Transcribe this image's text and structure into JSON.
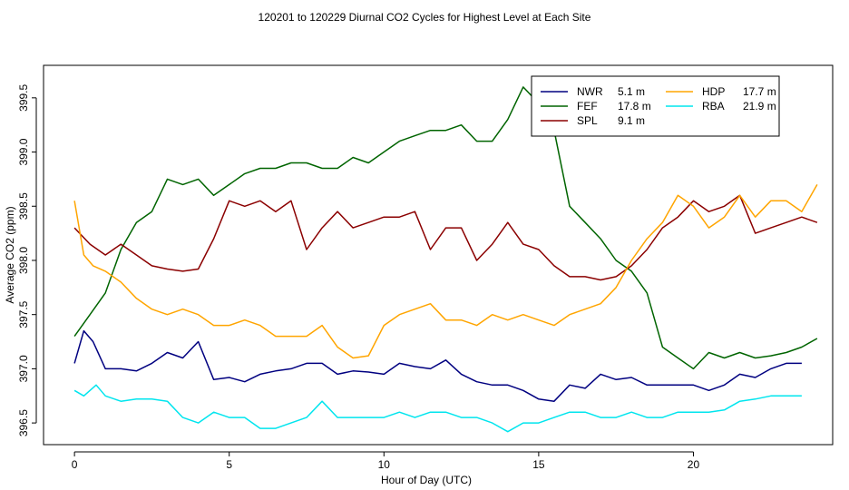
{
  "chart_data": {
    "type": "line",
    "title": "120201  to  120229 Diurnal CO2 Cycles for Highest Level at Each Site",
    "xlabel": "Hour of Day (UTC)",
    "ylabel": "Average CO2 (ppm)",
    "xlim": [
      -1,
      24.5
    ],
    "ylim": [
      396.3,
      399.8
    ],
    "x_ticks": [
      0,
      5,
      10,
      15,
      20
    ],
    "y_ticks": [
      396.5,
      397.0,
      397.5,
      398.0,
      398.5,
      399.0,
      399.5
    ],
    "x_tick_labels": [
      "0",
      "5",
      "10",
      "15",
      "20"
    ],
    "y_tick_labels": [
      "396.5",
      "397.0",
      "397.5",
      "398.0",
      "398.5",
      "399.0",
      "399.5"
    ],
    "legend_position": "top-right",
    "series": [
      {
        "name": "NWR",
        "height": "5.1 m",
        "color": "#000080",
        "line_style": "solid",
        "points": [
          [
            0,
            397.05
          ],
          [
            0.3,
            397.35
          ],
          [
            0.6,
            397.25
          ],
          [
            1,
            397.0
          ],
          [
            1.5,
            397.0
          ],
          [
            2,
            396.98
          ],
          [
            2.5,
            397.05
          ],
          [
            3,
            397.15
          ],
          [
            3.5,
            397.1
          ],
          [
            4,
            397.25
          ],
          [
            4.5,
            396.9
          ],
          [
            5,
            396.92
          ],
          [
            5.5,
            396.88
          ],
          [
            6,
            396.95
          ],
          [
            6.5,
            396.98
          ],
          [
            7,
            397.0
          ],
          [
            7.5,
            397.05
          ],
          [
            8,
            397.05
          ],
          [
            8.5,
            396.95
          ],
          [
            9,
            396.98
          ],
          [
            9.5,
            396.97
          ],
          [
            10,
            396.95
          ],
          [
            10.5,
            397.05
          ],
          [
            11,
            397.02
          ],
          [
            11.5,
            397.0
          ],
          [
            12,
            397.08
          ],
          [
            12.5,
            396.95
          ],
          [
            13,
            396.88
          ],
          [
            13.5,
            396.85
          ],
          [
            14,
            396.85
          ],
          [
            14.5,
            396.8
          ],
          [
            15,
            396.72
          ],
          [
            15.5,
            396.7
          ],
          [
            16,
            396.85
          ],
          [
            16.5,
            396.82
          ],
          [
            17,
            396.95
          ],
          [
            17.5,
            396.9
          ],
          [
            18,
            396.92
          ],
          [
            18.5,
            396.85
          ],
          [
            19,
            396.85
          ],
          [
            19.5,
            396.85
          ],
          [
            20,
            396.85
          ],
          [
            20.5,
            396.8
          ],
          [
            21,
            396.85
          ],
          [
            21.5,
            396.95
          ],
          [
            22,
            396.92
          ],
          [
            22.5,
            397.0
          ],
          [
            23,
            397.05
          ],
          [
            23.5,
            397.05
          ]
        ]
      },
      {
        "name": "FEF",
        "height": "17.8 m",
        "color": "#006400",
        "line_style": "solid",
        "points": [
          [
            0,
            397.3
          ],
          [
            0.5,
            397.5
          ],
          [
            1,
            397.7
          ],
          [
            1.5,
            398.1
          ],
          [
            2,
            398.35
          ],
          [
            2.5,
            398.45
          ],
          [
            3,
            398.75
          ],
          [
            3.5,
            398.7
          ],
          [
            4,
            398.75
          ],
          [
            4.5,
            398.6
          ],
          [
            5,
            398.7
          ],
          [
            5.5,
            398.8
          ],
          [
            6,
            398.85
          ],
          [
            6.5,
            398.85
          ],
          [
            7,
            398.9
          ],
          [
            7.5,
            398.9
          ],
          [
            8,
            398.85
          ],
          [
            8.5,
            398.85
          ],
          [
            9,
            398.95
          ],
          [
            9.5,
            398.9
          ],
          [
            10,
            399.0
          ],
          [
            10.5,
            399.1
          ],
          [
            11,
            399.15
          ],
          [
            11.5,
            399.2
          ],
          [
            12,
            399.2
          ],
          [
            12.5,
            399.25
          ],
          [
            13,
            399.1
          ],
          [
            13.5,
            399.1
          ],
          [
            14,
            399.3
          ],
          [
            14.5,
            399.6
          ],
          [
            15,
            399.45
          ],
          [
            15.5,
            399.2
          ],
          [
            16,
            398.5
          ],
          [
            16.5,
            398.35
          ],
          [
            17,
            398.2
          ],
          [
            17.5,
            398.0
          ],
          [
            18,
            397.9
          ],
          [
            18.5,
            397.7
          ],
          [
            19,
            397.2
          ],
          [
            19.5,
            397.1
          ],
          [
            20,
            397.0
          ],
          [
            20.5,
            397.15
          ],
          [
            21,
            397.1
          ],
          [
            21.5,
            397.15
          ],
          [
            22,
            397.1
          ],
          [
            22.5,
            397.12
          ],
          [
            23,
            397.15
          ],
          [
            23.5,
            397.2
          ],
          [
            24,
            397.28
          ]
        ]
      },
      {
        "name": "SPL",
        "height": "9.1 m",
        "color": "#8b0000",
        "line_style": "solid",
        "points": [
          [
            0,
            398.3
          ],
          [
            0.5,
            398.15
          ],
          [
            1,
            398.05
          ],
          [
            1.5,
            398.15
          ],
          [
            2,
            398.05
          ],
          [
            2.5,
            397.95
          ],
          [
            3,
            397.92
          ],
          [
            3.5,
            397.9
          ],
          [
            4,
            397.92
          ],
          [
            4.5,
            398.2
          ],
          [
            5,
            398.55
          ],
          [
            5.5,
            398.5
          ],
          [
            6,
            398.55
          ],
          [
            6.5,
            398.45
          ],
          [
            7,
            398.55
          ],
          [
            7.5,
            398.1
          ],
          [
            8,
            398.3
          ],
          [
            8.5,
            398.45
          ],
          [
            9,
            398.3
          ],
          [
            9.5,
            398.35
          ],
          [
            10,
            398.4
          ],
          [
            10.5,
            398.4
          ],
          [
            11,
            398.45
          ],
          [
            11.5,
            398.1
          ],
          [
            12,
            398.3
          ],
          [
            12.5,
            398.3
          ],
          [
            13,
            398.0
          ],
          [
            13.5,
            398.15
          ],
          [
            14,
            398.35
          ],
          [
            14.5,
            398.15
          ],
          [
            15,
            398.1
          ],
          [
            15.5,
            397.95
          ],
          [
            16,
            397.85
          ],
          [
            16.5,
            397.85
          ],
          [
            17,
            397.82
          ],
          [
            17.5,
            397.85
          ],
          [
            18,
            397.95
          ],
          [
            18.5,
            398.1
          ],
          [
            19,
            398.3
          ],
          [
            19.5,
            398.4
          ],
          [
            20,
            398.55
          ],
          [
            20.5,
            398.45
          ],
          [
            21,
            398.5
          ],
          [
            21.5,
            398.6
          ],
          [
            22,
            398.25
          ],
          [
            22.5,
            398.3
          ],
          [
            23,
            398.35
          ],
          [
            23.5,
            398.4
          ],
          [
            24,
            398.35
          ]
        ]
      },
      {
        "name": "HDP",
        "height": "17.7 m",
        "color": "#ffa500",
        "line_style": "solid",
        "points": [
          [
            0,
            398.55
          ],
          [
            0.3,
            398.05
          ],
          [
            0.6,
            397.95
          ],
          [
            1,
            397.9
          ],
          [
            1.5,
            397.8
          ],
          [
            2,
            397.65
          ],
          [
            2.5,
            397.55
          ],
          [
            3,
            397.5
          ],
          [
            3.5,
            397.55
          ],
          [
            4,
            397.5
          ],
          [
            4.5,
            397.4
          ],
          [
            5,
            397.4
          ],
          [
            5.5,
            397.45
          ],
          [
            6,
            397.4
          ],
          [
            6.5,
            397.3
          ],
          [
            7,
            397.3
          ],
          [
            7.5,
            397.3
          ],
          [
            8,
            397.4
          ],
          [
            8.5,
            397.2
          ],
          [
            9,
            397.1
          ],
          [
            9.5,
            397.12
          ],
          [
            10,
            397.4
          ],
          [
            10.5,
            397.5
          ],
          [
            11,
            397.55
          ],
          [
            11.5,
            397.6
          ],
          [
            12,
            397.45
          ],
          [
            12.5,
            397.45
          ],
          [
            13,
            397.4
          ],
          [
            13.5,
            397.5
          ],
          [
            14,
            397.45
          ],
          [
            14.5,
            397.5
          ],
          [
            15,
            397.45
          ],
          [
            15.5,
            397.4
          ],
          [
            16,
            397.5
          ],
          [
            16.5,
            397.55
          ],
          [
            17,
            397.6
          ],
          [
            17.5,
            397.75
          ],
          [
            18,
            398.0
          ],
          [
            18.5,
            398.2
          ],
          [
            19,
            398.35
          ],
          [
            19.5,
            398.6
          ],
          [
            20,
            398.5
          ],
          [
            20.5,
            398.3
          ],
          [
            21,
            398.4
          ],
          [
            21.5,
            398.6
          ],
          [
            22,
            398.4
          ],
          [
            22.5,
            398.55
          ],
          [
            23,
            398.55
          ],
          [
            23.5,
            398.45
          ],
          [
            24,
            398.7
          ]
        ]
      },
      {
        "name": "RBA",
        "height": "21.9 m",
        "color": "#00e5ee",
        "line_style": "solid",
        "points": [
          [
            0,
            396.8
          ],
          [
            0.3,
            396.75
          ],
          [
            0.7,
            396.85
          ],
          [
            1,
            396.75
          ],
          [
            1.5,
            396.7
          ],
          [
            2,
            396.72
          ],
          [
            2.5,
            396.72
          ],
          [
            3,
            396.7
          ],
          [
            3.5,
            396.55
          ],
          [
            4,
            396.5
          ],
          [
            4.5,
            396.6
          ],
          [
            5,
            396.55
          ],
          [
            5.5,
            396.55
          ],
          [
            6,
            396.45
          ],
          [
            6.5,
            396.45
          ],
          [
            7,
            396.5
          ],
          [
            7.5,
            396.55
          ],
          [
            8,
            396.7
          ],
          [
            8.5,
            396.55
          ],
          [
            9,
            396.55
          ],
          [
            9.5,
            396.55
          ],
          [
            10,
            396.55
          ],
          [
            10.5,
            396.6
          ],
          [
            11,
            396.55
          ],
          [
            11.5,
            396.6
          ],
          [
            12,
            396.6
          ],
          [
            12.5,
            396.55
          ],
          [
            13,
            396.55
          ],
          [
            13.5,
            396.5
          ],
          [
            14,
            396.42
          ],
          [
            14.5,
            396.5
          ],
          [
            15,
            396.5
          ],
          [
            15.5,
            396.55
          ],
          [
            16,
            396.6
          ],
          [
            16.5,
            396.6
          ],
          [
            17,
            396.55
          ],
          [
            17.5,
            396.55
          ],
          [
            18,
            396.6
          ],
          [
            18.5,
            396.55
          ],
          [
            19,
            396.55
          ],
          [
            19.5,
            396.6
          ],
          [
            20,
            396.6
          ],
          [
            20.5,
            396.6
          ],
          [
            21,
            396.62
          ],
          [
            21.5,
            396.7
          ],
          [
            22,
            396.72
          ],
          [
            22.5,
            396.75
          ],
          [
            23,
            396.75
          ],
          [
            23.5,
            396.75
          ]
        ]
      }
    ]
  }
}
